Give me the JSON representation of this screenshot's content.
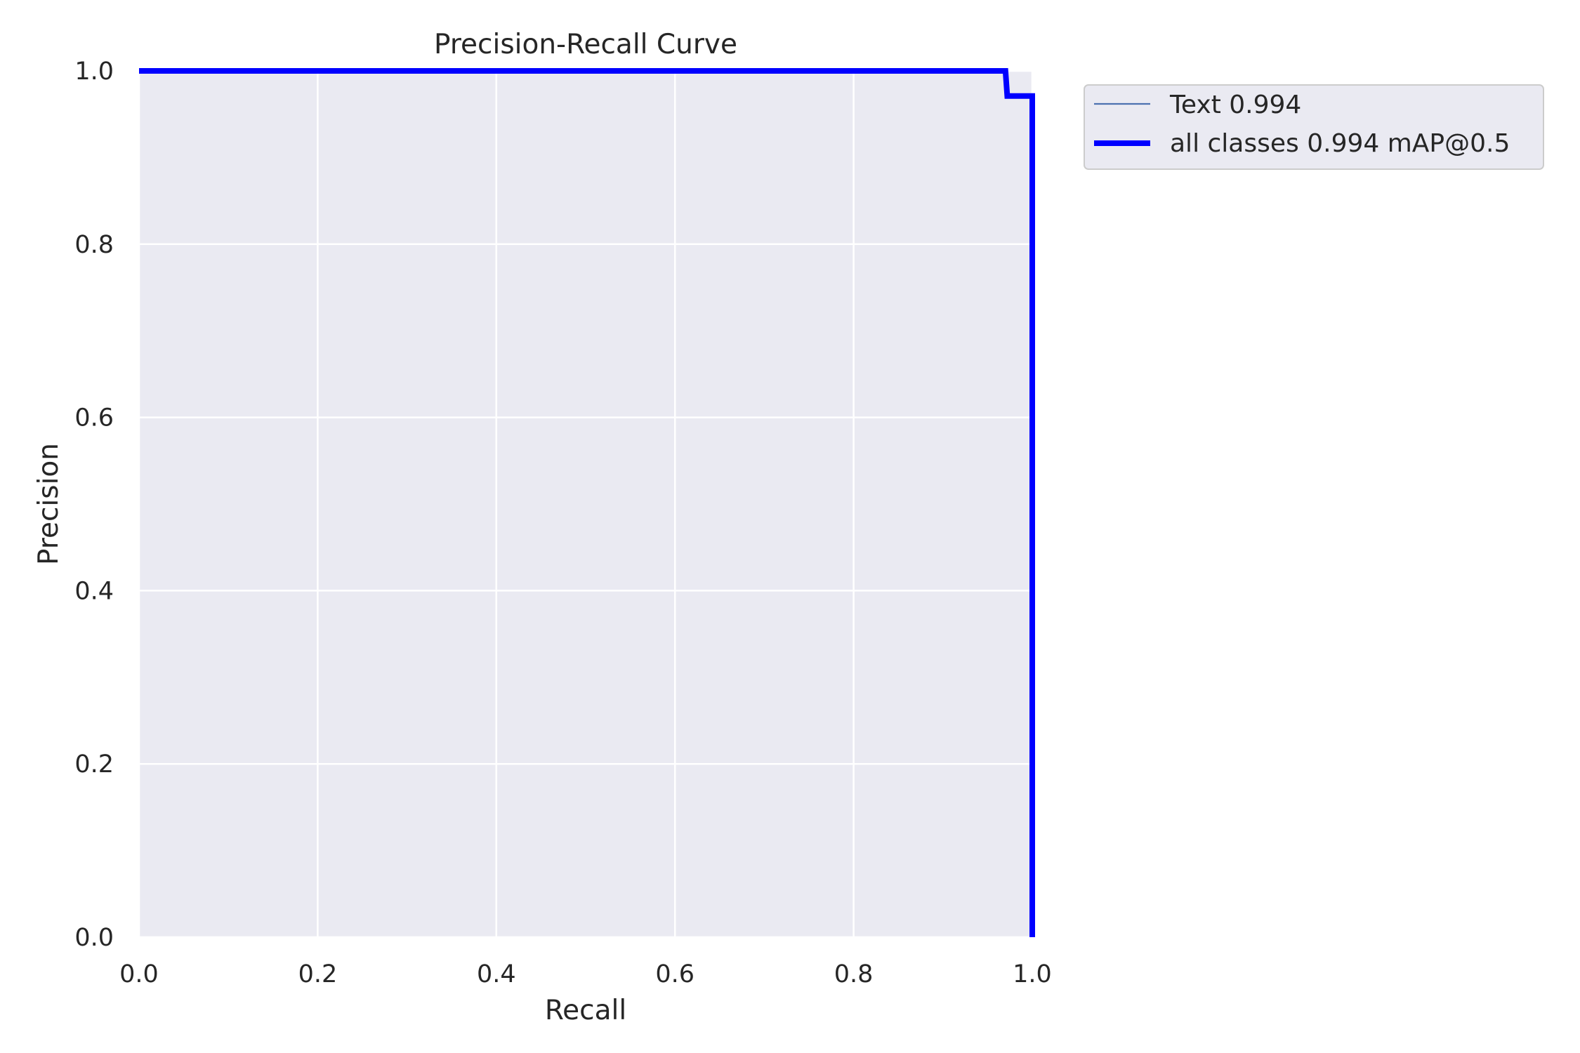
{
  "chart_data": {
    "type": "line",
    "title": "Precision-Recall Curve",
    "xlabel": "Recall",
    "ylabel": "Precision",
    "xlim": [
      0,
      1
    ],
    "ylim": [
      0,
      1
    ],
    "x_ticks": [
      "0.0",
      "0.2",
      "0.4",
      "0.6",
      "0.8",
      "1.0"
    ],
    "y_ticks": [
      "0.0",
      "0.2",
      "0.4",
      "0.6",
      "0.8",
      "1.0"
    ],
    "grid": true,
    "background_color": "#eaeaf2",
    "legend_position": "outside-top-right",
    "series": [
      {
        "name": "Text 0.994",
        "color": "#4c72b0",
        "style": "thin",
        "x": [
          0.0,
          0.97,
          0.97,
          1.0,
          1.0
        ],
        "y": [
          1.0,
          1.0,
          0.971,
          0.971,
          0.0
        ]
      },
      {
        "name": "all classes 0.994 mAP@0.5",
        "color": "#0000ff",
        "style": "thick",
        "x": [
          0.0,
          0.97,
          0.972,
          1.0,
          1.0
        ],
        "y": [
          1.0,
          1.0,
          0.971,
          0.971,
          0.0
        ]
      }
    ]
  }
}
